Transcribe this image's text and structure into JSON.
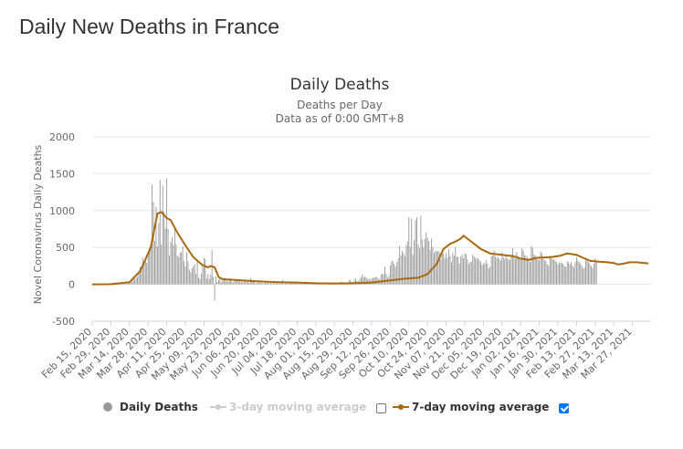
{
  "page": {
    "title": "Daily New Deaths in France"
  },
  "chart_data": {
    "type": "bar",
    "title": "Daily Deaths",
    "subtitle": "Deaths per Day",
    "subtitle2": "Data as of 0:00 GMT+8",
    "ylabel": "Novel Coronavirus Daily Deaths",
    "ylim": [
      -500,
      2000
    ],
    "yticks": [
      -500,
      0,
      500,
      1000,
      1500,
      2000
    ],
    "xlim": [
      "2020-02-15",
      "2021-04-10"
    ],
    "grid": true,
    "x_tick_labels": [
      "Feb 15, 2020",
      "Feb 29, 2020",
      "Mar 14, 2020",
      "Mar 28, 2020",
      "Apr 11, 2020",
      "Apr 25, 2020",
      "May 09, 2020",
      "May 23, 2020",
      "Jun 06, 2020",
      "Jun 20, 2020",
      "Jul 04, 2020",
      "Jul 18, 2020",
      "Aug 01, 2020",
      "Aug 15, 2020",
      "Aug 29, 2020",
      "Sep 12, 2020",
      "Sep 26, 2020",
      "Oct 10, 2020",
      "Oct 24, 2020",
      "Nov 07, 2020",
      "Nov 21, 2020",
      "Dec 05, 2020",
      "Dec 19, 2020",
      "Jan 02, 2021",
      "Jan 16, 2021",
      "Jan 30, 2021",
      "Feb 13, 2021",
      "Feb 27, 2021",
      "Mar 13, 2021",
      "Mar 27, 2021"
    ],
    "series": [
      {
        "name": "Daily Deaths",
        "kind": "bar",
        "color": "#999999",
        "visible": true,
        "start": "2020-02-15",
        "step_days": 1,
        "values": [
          0,
          0,
          0,
          0,
          0,
          0,
          0,
          0,
          0,
          0,
          1,
          0,
          1,
          0,
          2,
          0,
          0,
          0,
          2,
          1,
          3,
          4,
          5,
          3,
          6,
          9,
          11,
          19,
          21,
          27,
          48,
          79,
          78,
          90,
          112,
          186,
          240,
          231,
          365,
          299,
          319,
          292,
          418,
          499,
          509,
          1355,
          1120,
          588,
          1053,
          518,
          833,
          1417,
          541,
          1341,
          987,
          761,
          1438,
          753,
          395,
          574,
          644,
          531,
          757,
          544,
          389,
          367,
          427,
          435,
          516,
          319,
          242,
          437,
          306,
          200,
          164,
          218,
          247,
          278,
          144,
          306,
          98,
          74,
          150,
          243,
          360,
          346,
          81,
          143,
          70,
          131,
          468,
          102,
          -217,
          106,
          35,
          65,
          83,
          31,
          57,
          90,
          70,
          52,
          37,
          57,
          83,
          45,
          27,
          50,
          48,
          44,
          56,
          38,
          33,
          29,
          36,
          37,
          32,
          44,
          25,
          88,
          39,
          37,
          32,
          15,
          22,
          30,
          23,
          21,
          18,
          16,
          29,
          22,
          24,
          12,
          22,
          17,
          17,
          28,
          11,
          24,
          14,
          10,
          20,
          60,
          8,
          28,
          15,
          2,
          13,
          17,
          13,
          18,
          11,
          17,
          9,
          4,
          16,
          11,
          9,
          5,
          12,
          8,
          8,
          10,
          12,
          4,
          9,
          5,
          6,
          9,
          22,
          15,
          14,
          9,
          18,
          21,
          20,
          16,
          20,
          22,
          21,
          14,
          25,
          22,
          24,
          25,
          15,
          35,
          32,
          25,
          28,
          23,
          29,
          51,
          65,
          34,
          35,
          60,
          78,
          45,
          43,
          69,
          98,
          137,
          94,
          110,
          94,
          72,
          75,
          59,
          77,
          89,
          92,
          105,
          96,
          76,
          67,
          129,
          146,
          132,
          244,
          145,
          92,
          121,
          261,
          312,
          318,
          276,
          241,
          303,
          350,
          524,
          395,
          458,
          423,
          382,
          531,
          584,
          913,
          513,
          894,
          400,
          600,
          874,
          908,
          542,
          484,
          932,
          610,
          503,
          618,
          700,
          634,
          590,
          472,
          621,
          506,
          428,
          455,
          448,
          455,
          435,
          343,
          413,
          423,
          348,
          426,
          361,
          473,
          386,
          305,
          433,
          389,
          505,
          372,
          374,
          280,
          381,
          404,
          354,
          419,
          413,
          336,
          275,
          301,
          306,
          403,
          378,
          359,
          345,
          353,
          329,
          305,
          260,
          287,
          282,
          334,
          280,
          221,
          240,
          380,
          393,
          461,
          378,
          354,
          374,
          346,
          323,
          436,
          366,
          344,
          382,
          348,
          343,
          329,
          407,
          492,
          389,
          349,
          438,
          381,
          368,
          356,
          493,
          459,
          397,
          390,
          361,
          357,
          304,
          521,
          496,
          403,
          391,
          347,
          342,
          325,
          447,
          421,
          350,
          328,
          314,
          270,
          252,
          390,
          372,
          341,
          336,
          323,
          302,
          270,
          301,
          289,
          291,
          279,
          246,
          238,
          313,
          303,
          271,
          306,
          256,
          228,
          301,
          366,
          325,
          301,
          284,
          252,
          212,
          231,
          357,
          324,
          300,
          283,
          251,
          224,
          281,
          353,
          320
        ]
      },
      {
        "name": "3-day moving average",
        "kind": "line",
        "color": "#cccccc",
        "visible": false
      },
      {
        "name": "7-day moving average",
        "kind": "line",
        "color": "#a86a10",
        "visible": true,
        "points": [
          [
            "2020-02-15",
            0
          ],
          [
            "2020-02-29",
            2
          ],
          [
            "2020-03-14",
            30
          ],
          [
            "2020-03-22",
            180
          ],
          [
            "2020-03-30",
            500
          ],
          [
            "2020-04-04",
            960
          ],
          [
            "2020-04-07",
            980
          ],
          [
            "2020-04-11",
            900
          ],
          [
            "2020-04-14",
            870
          ],
          [
            "2020-04-19",
            700
          ],
          [
            "2020-04-25",
            530
          ],
          [
            "2020-05-01",
            370
          ],
          [
            "2020-05-08",
            260
          ],
          [
            "2020-05-12",
            230
          ],
          [
            "2020-05-14",
            250
          ],
          [
            "2020-05-17",
            230
          ],
          [
            "2020-05-20",
            100
          ],
          [
            "2020-05-23",
            70
          ],
          [
            "2020-06-06",
            55
          ],
          [
            "2020-06-20",
            40
          ],
          [
            "2020-07-04",
            30
          ],
          [
            "2020-07-18",
            25
          ],
          [
            "2020-08-01",
            15
          ],
          [
            "2020-08-15",
            12
          ],
          [
            "2020-08-29",
            15
          ],
          [
            "2020-09-12",
            25
          ],
          [
            "2020-09-26",
            55
          ],
          [
            "2020-10-06",
            75
          ],
          [
            "2020-10-17",
            90
          ],
          [
            "2020-10-24",
            140
          ],
          [
            "2020-10-31",
            280
          ],
          [
            "2020-11-05",
            480
          ],
          [
            "2020-11-10",
            550
          ],
          [
            "2020-11-14",
            580
          ],
          [
            "2020-11-18",
            620
          ],
          [
            "2020-11-20",
            660
          ],
          [
            "2020-11-23",
            620
          ],
          [
            "2020-11-28",
            550
          ],
          [
            "2020-12-03",
            480
          ],
          [
            "2020-12-10",
            420
          ],
          [
            "2020-12-19",
            400
          ],
          [
            "2020-12-28",
            380
          ],
          [
            "2021-01-02",
            350
          ],
          [
            "2021-01-08",
            330
          ],
          [
            "2021-01-14",
            360
          ],
          [
            "2021-01-25",
            370
          ],
          [
            "2021-02-01",
            390
          ],
          [
            "2021-02-06",
            420
          ],
          [
            "2021-02-13",
            400
          ],
          [
            "2021-02-18",
            360
          ],
          [
            "2021-02-23",
            320
          ],
          [
            "2021-03-01",
            310
          ],
          [
            "2021-03-08",
            300
          ],
          [
            "2021-03-13",
            290
          ],
          [
            "2021-03-16",
            270
          ],
          [
            "2021-03-20",
            280
          ],
          [
            "2021-03-25",
            300
          ],
          [
            "2021-03-30",
            300
          ],
          [
            "2021-04-08",
            285
          ]
        ]
      }
    ],
    "legend": {
      "position": "bottom"
    }
  }
}
